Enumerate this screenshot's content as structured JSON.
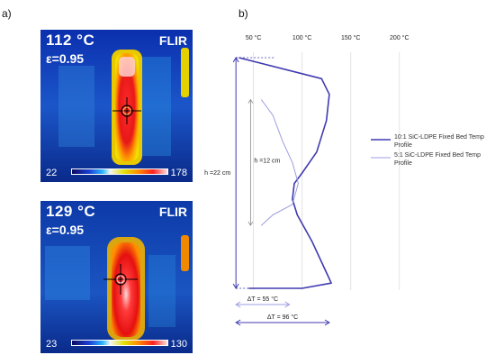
{
  "panels": {
    "a_label": "a)",
    "b_label": "b)"
  },
  "thermal_images": [
    {
      "temperature": "112 °C",
      "emissivity": "ε=0.95",
      "brand": "FLIR",
      "scale_min": "22",
      "scale_max": "178"
    },
    {
      "temperature": "129 °C",
      "emissivity": "ε=0.95",
      "brand": "FLIR",
      "scale_min": "23",
      "scale_max": "130"
    }
  ],
  "chart_data": {
    "type": "line",
    "x_ticks": [
      "50 °C",
      "100 °C",
      "150 °C",
      "200 °C"
    ],
    "x_tick_values": [
      50,
      100,
      150,
      200
    ],
    "xlim": [
      30,
      215
    ],
    "series": [
      {
        "name": "10:1 SiC-LDPE Fixed Bed Temp Profile",
        "color": "#3f3ab0",
        "points": [
          [
            35,
            22
          ],
          [
            120,
            20
          ],
          [
            128,
            18.5
          ],
          [
            125,
            16
          ],
          [
            115,
            13
          ],
          [
            100,
            11
          ],
          [
            92,
            10
          ],
          [
            90,
            8.5
          ],
          [
            95,
            7
          ],
          [
            110,
            4.5
          ],
          [
            125,
            1.5
          ],
          [
            130,
            0.5
          ],
          [
            100,
            0
          ],
          [
            45,
            0
          ]
        ]
      },
      {
        "name": "5:1 SiC-LDPE Fixed Bed Temp Profile",
        "color": "#9c9ce0",
        "points": [
          [
            58,
            18
          ],
          [
            70,
            16.5
          ],
          [
            80,
            14
          ],
          [
            90,
            12
          ],
          [
            96,
            10
          ],
          [
            90,
            8
          ],
          [
            70,
            7
          ],
          [
            58,
            6
          ]
        ]
      }
    ],
    "height_markers": [
      {
        "label": "h =22 cm"
      },
      {
        "label": "h =12 cm"
      }
    ],
    "delta_markers": [
      {
        "label": "ΔT = 55 °C",
        "from": 32,
        "to": 87
      },
      {
        "label": "ΔT = 96 °C",
        "from": 32,
        "to": 128
      }
    ]
  }
}
